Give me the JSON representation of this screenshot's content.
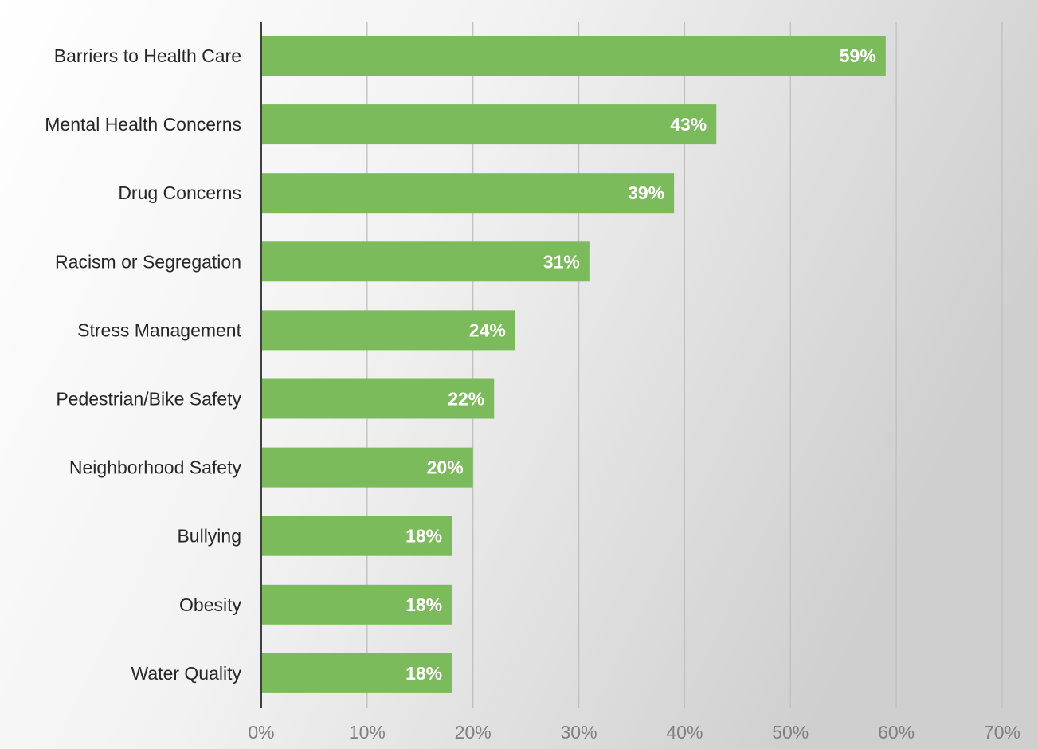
{
  "colors": {
    "bar": "#7bbb5b",
    "gridline": "#bfbfbf",
    "axis": "#404040",
    "background_light": "#ffffff",
    "background_dark": "#cfcfcf"
  },
  "chart_data": {
    "type": "bar",
    "orientation": "horizontal",
    "categories": [
      "Barriers to Health Care",
      "Mental Health Concerns",
      "Drug Concerns",
      "Racism or Segregation",
      "Stress Management",
      "Pedestrian/Bike Safety",
      "Neighborhood Safety",
      "Bullying",
      "Obesity",
      "Water Quality"
    ],
    "values": [
      59,
      43,
      39,
      31,
      24,
      22,
      20,
      18,
      18,
      18
    ],
    "data_labels": [
      "59%",
      "43%",
      "39%",
      "31%",
      "24%",
      "22%",
      "20%",
      "18%",
      "18%",
      "18%"
    ],
    "xlim": [
      0,
      70
    ],
    "x_ticks": [
      0,
      10,
      20,
      30,
      40,
      50,
      60,
      70
    ],
    "x_tick_labels": [
      "0%",
      "10%",
      "20%",
      "30%",
      "40%",
      "50%",
      "60%",
      "70%"
    ],
    "title": "",
    "xlabel": "",
    "ylabel": "",
    "grid": true,
    "legend": "none"
  }
}
